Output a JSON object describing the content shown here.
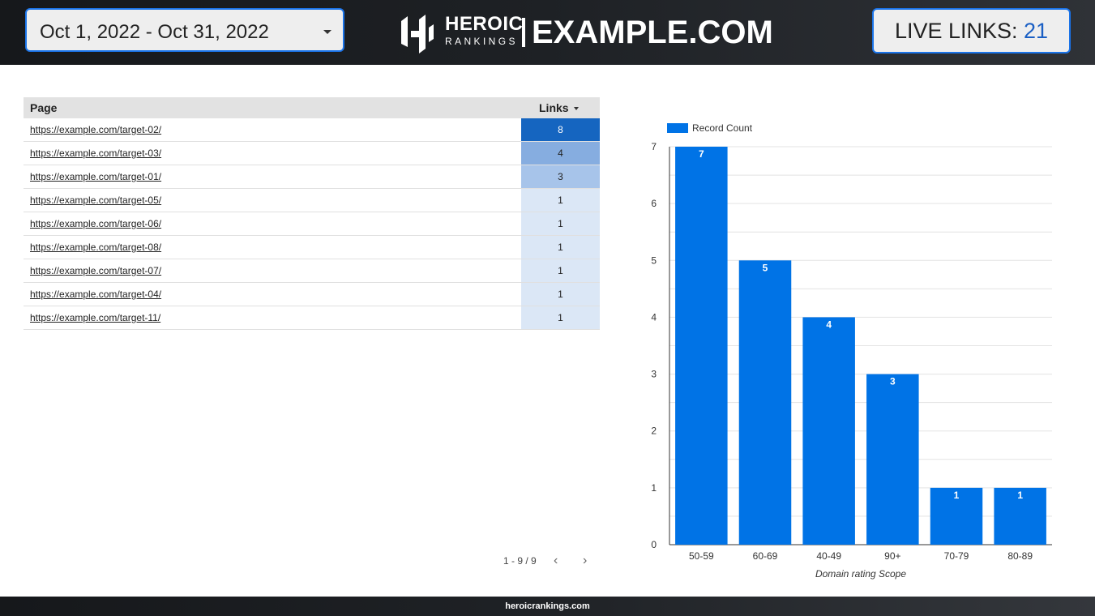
{
  "header": {
    "date_range": "Oct 1, 2022 - Oct 31, 2022",
    "brand_main": "HEROIC",
    "brand_sub": "RANKINGS",
    "site": "EXAMPLE.COM",
    "live_label": "LIVE LINKS: ",
    "live_count": "21"
  },
  "table": {
    "headers": {
      "page": "Page",
      "links": "Links"
    },
    "rows": [
      {
        "page": "https://example.com/target-02/",
        "links": "8",
        "bg": "#1565c0",
        "fg": "#ffffff"
      },
      {
        "page": "https://example.com/target-03/",
        "links": "4",
        "bg": "#86ade0",
        "fg": "#222222"
      },
      {
        "page": "https://example.com/target-01/",
        "links": "3",
        "bg": "#a7c4ea",
        "fg": "#222222"
      },
      {
        "page": "https://example.com/target-05/",
        "links": "1",
        "bg": "#dbe7f6",
        "fg": "#222222"
      },
      {
        "page": "https://example.com/target-06/",
        "links": "1",
        "bg": "#dbe7f6",
        "fg": "#222222"
      },
      {
        "page": "https://example.com/target-08/",
        "links": "1",
        "bg": "#dbe7f6",
        "fg": "#222222"
      },
      {
        "page": "https://example.com/target-07/",
        "links": "1",
        "bg": "#dbe7f6",
        "fg": "#222222"
      },
      {
        "page": "https://example.com/target-04/",
        "links": "1",
        "bg": "#dbe7f6",
        "fg": "#222222"
      },
      {
        "page": "https://example.com/target-11/",
        "links": "1",
        "bg": "#dbe7f6",
        "fg": "#222222"
      }
    ],
    "pagination": "1 - 9 / 9"
  },
  "chart_data": {
    "type": "bar",
    "categories": [
      "50-59",
      "60-69",
      "40-49",
      "90+",
      "70-79",
      "80-89"
    ],
    "values": [
      7,
      5,
      4,
      3,
      1,
      1
    ],
    "series": [
      {
        "name": "Record Count",
        "values": [
          7,
          5,
          4,
          3,
          1,
          1
        ]
      }
    ],
    "xlabel": "Domain rating Scope",
    "ylabel": "",
    "ylim": [
      0,
      7
    ],
    "yticks": [
      0,
      1,
      2,
      3,
      4,
      5,
      6,
      7
    ],
    "legend": "top-left",
    "grid": true,
    "color": "#0073e6"
  },
  "footer": {
    "text": "heroicrankings.com"
  }
}
